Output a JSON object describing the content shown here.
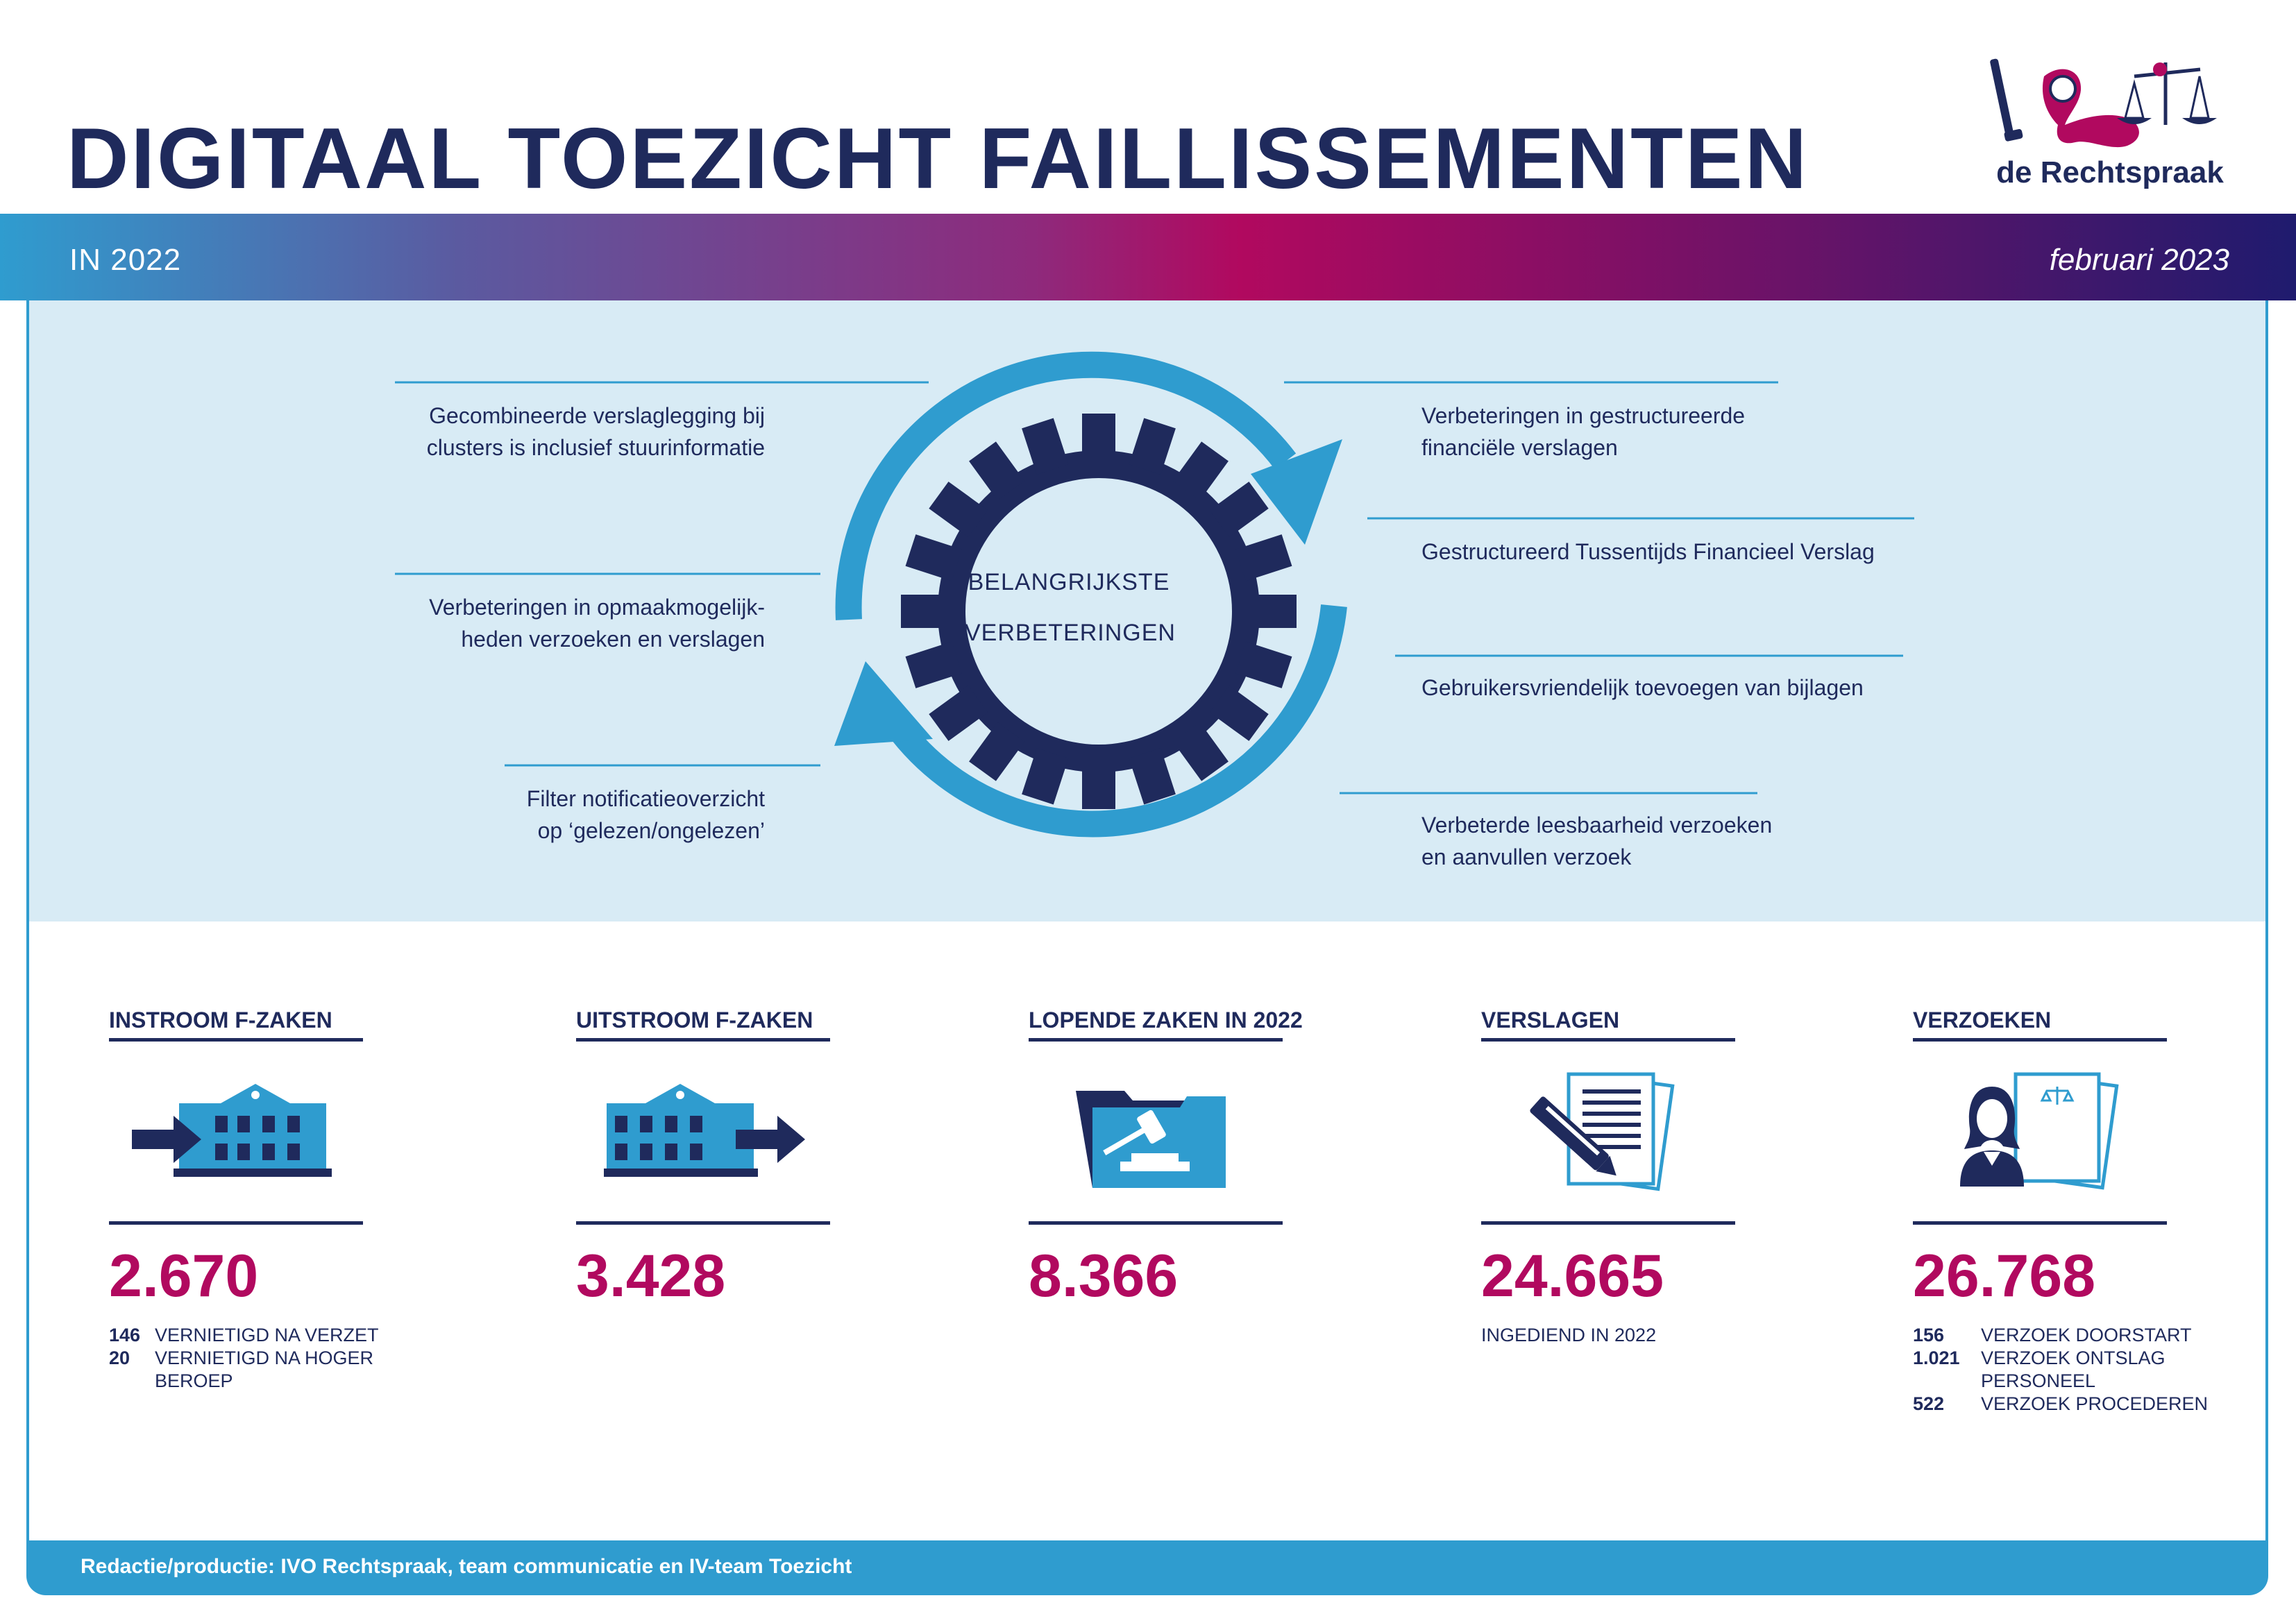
{
  "header": {
    "title": "DIGITAAL TOEZICHT FAILLISSEMENTEN",
    "subtitle": "IN 2022",
    "date": "februari 2023",
    "logo_text": "de Rechtspraak"
  },
  "colors": {
    "navy": "#1f2a5c",
    "blue": "#2f9ccf",
    "magenta": "#b1095f",
    "panel": "#d8ebf5"
  },
  "improvements": {
    "center_line1": "BELANGRIJKSTE",
    "center_line2": "VERBETERINGEN",
    "left": [
      {
        "line1": "Gecombineerde verslaglegging bij",
        "line2": "clusters is inclusief stuurinformatie"
      },
      {
        "line1": "Verbeteringen in opmaakmogelijk-",
        "line2": "heden verzoeken en verslagen"
      },
      {
        "line1": "Filter notificatieoverzicht",
        "line2": "op ‘gelezen/ongelezen’"
      }
    ],
    "right": [
      {
        "line1": "Verbeteringen in gestructureerde",
        "line2": "financiële verslagen"
      },
      {
        "line1": "Gestructureerd Tussentijds Financieel Verslag",
        "line2": ""
      },
      {
        "line1": "Gebruikersvriendelijk toevoegen van bijlagen",
        "line2": ""
      },
      {
        "line1": "Verbeterde leesbaarheid verzoeken",
        "line2": "en aanvullen verzoek"
      }
    ]
  },
  "stats": [
    {
      "heading": "INSTROOM F-ZAKEN",
      "icon": "building-inflow-icon",
      "value": "2.670",
      "details": [
        {
          "n": "146",
          "text": "VERNIETIGD NA VERZET"
        },
        {
          "n": "20",
          "text": "VERNIETIGD NA HOGER BEROEP"
        }
      ]
    },
    {
      "heading": "UITSTROOM F-ZAKEN",
      "icon": "building-outflow-icon",
      "value": "3.428",
      "details": []
    },
    {
      "heading": "LOPENDE ZAKEN IN 2022",
      "icon": "folder-gavel-icon",
      "value": "8.366",
      "details": []
    },
    {
      "heading": "VERSLAGEN",
      "icon": "document-pencil-icon",
      "value": "24.665",
      "details": [
        {
          "n": "",
          "text": "INGEDIEND IN 2022"
        }
      ]
    },
    {
      "heading": "VERZOEKEN",
      "icon": "person-document-icon",
      "value": "26.768",
      "details": [
        {
          "n": "156",
          "text": "VERZOEK DOORSTART"
        },
        {
          "n": "1.021",
          "text": "VERZOEK ONTSLAG PERSONEEL"
        },
        {
          "n": "522",
          "text": "VERZOEK PROCEDEREN"
        }
      ]
    }
  ],
  "footer": {
    "credit": "Redactie/productie: IVO Rechtspraak, team communicatie en IV-team Toezicht"
  }
}
